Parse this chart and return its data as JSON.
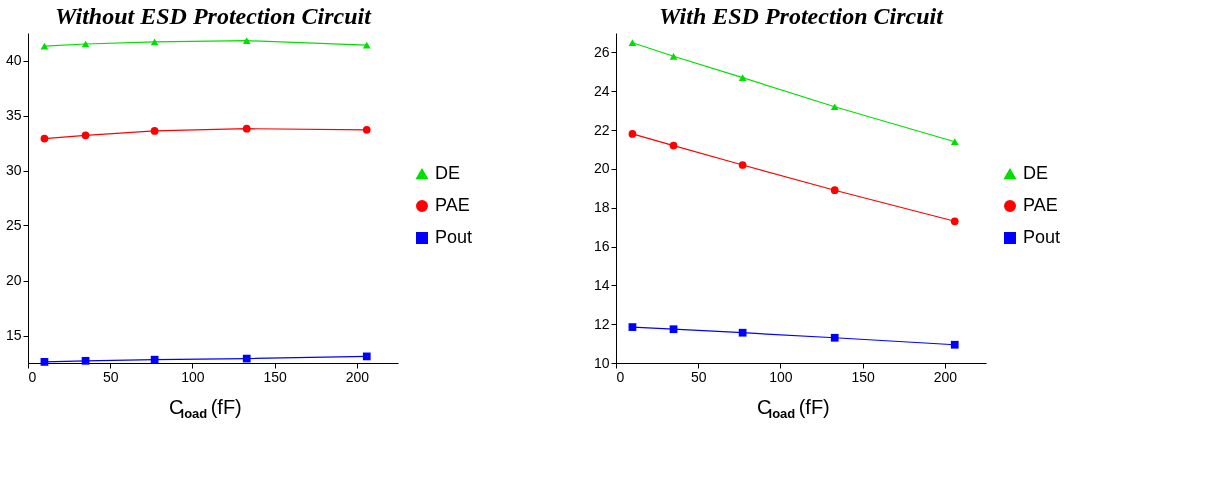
{
  "chart_data": [
    {
      "type": "line",
      "title": "Without ESD Protection Circuit",
      "xlabel": "C$_{load}$(fF)",
      "x": [
        10,
        35,
        77,
        133,
        206
      ],
      "xlim": [
        0,
        225
      ],
      "xticks": [
        0,
        50,
        100,
        150,
        200
      ],
      "ylim": [
        12.5,
        42.5
      ],
      "yticks": [
        15,
        20,
        25,
        30,
        35,
        40
      ],
      "grid": false,
      "legend": "right",
      "line_style": "solid",
      "series": [
        {
          "name": "DE",
          "color": "#00e000",
          "marker": "triangle",
          "values": [
            41.3,
            41.5,
            41.7,
            41.8,
            41.4
          ]
        },
        {
          "name": "PAE",
          "color": "#ff0000",
          "marker": "circle",
          "values": [
            32.9,
            33.2,
            33.6,
            33.8,
            33.7
          ]
        },
        {
          "name": "Pout",
          "color": "#0000ff",
          "marker": "square",
          "values": [
            12.6,
            12.7,
            12.8,
            12.9,
            13.1
          ]
        }
      ]
    },
    {
      "type": "line",
      "title": "With ESD Protection Circuit",
      "xlabel": "C$_{load}$(fF)",
      "x": [
        10,
        35,
        77,
        133,
        206
      ],
      "xlim": [
        0,
        225
      ],
      "xticks": [
        0,
        50,
        100,
        150,
        200
      ],
      "ylim": [
        10,
        27
      ],
      "yticks": [
        10,
        12,
        14,
        16,
        18,
        20,
        22,
        24,
        26
      ],
      "grid": false,
      "legend": "right",
      "line_style": "solid",
      "series": [
        {
          "name": "DE",
          "color": "#00e000",
          "marker": "triangle",
          "values": [
            26.5,
            25.8,
            24.7,
            23.2,
            21.4
          ]
        },
        {
          "name": "PAE",
          "color": "#ff0000",
          "marker": "circle",
          "values": [
            21.8,
            21.2,
            20.2,
            18.9,
            17.3
          ]
        },
        {
          "name": "Pout",
          "color": "#0000ff",
          "marker": "square",
          "values": [
            11.85,
            11.74,
            11.56,
            11.3,
            10.94
          ]
        }
      ]
    }
  ]
}
